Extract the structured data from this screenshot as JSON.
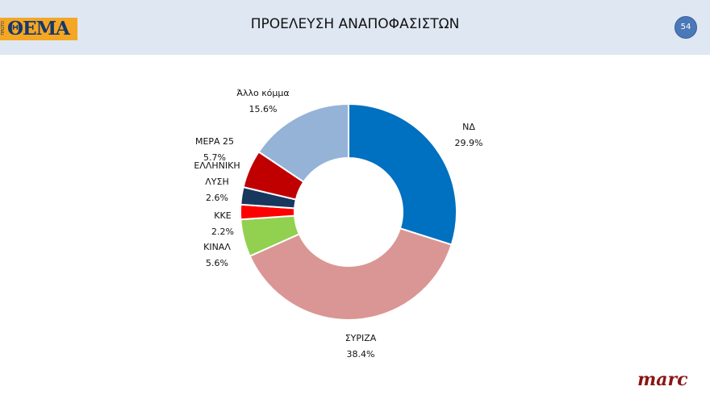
{
  "header": {
    "logo_text": "ΘΕΜΑ",
    "logo_side_text": "ΠΡΩΤΟ",
    "title": "ΠΡΟΕΛΕΥΣΗ ΑΝΑΠΟΦΑΣΙΣΤΩΝ",
    "page_number": "54"
  },
  "footer": {
    "brand": "marc"
  },
  "chart_data": {
    "type": "pie",
    "donut": true,
    "title": "ΠΡΟΕΛΕΥΣΗ ΑΝΑΠΟΦΑΣΙΣΤΩΝ",
    "start": "top",
    "direction": "clockwise",
    "slices": [
      {
        "label": "ΝΔ",
        "value": 29.9,
        "display": "29.9%",
        "color": "#0070c0"
      },
      {
        "label": "ΣΥΡΙΖΑ",
        "value": 38.4,
        "display": "38.4%",
        "color": "#da9694"
      },
      {
        "label": "ΚΙΝΑΛ",
        "value": 5.6,
        "display": "5.6%",
        "color": "#92d050"
      },
      {
        "label": "ΚΚΕ",
        "value": 2.2,
        "display": "2.2%",
        "color": "#ff0000"
      },
      {
        "label": "ΕΛΛΗΝΙΚΗ ΛΥΣΗ",
        "value": 2.6,
        "display": "2.6%",
        "color": "#17375e"
      },
      {
        "label": "ΜΕΡΑ 25",
        "value": 5.7,
        "display": "5.7%",
        "color": "#c00000"
      },
      {
        "label": "Άλλο κόμμα",
        "value": 15.6,
        "display": "15.6%",
        "color": "#95b3d7"
      }
    ]
  }
}
